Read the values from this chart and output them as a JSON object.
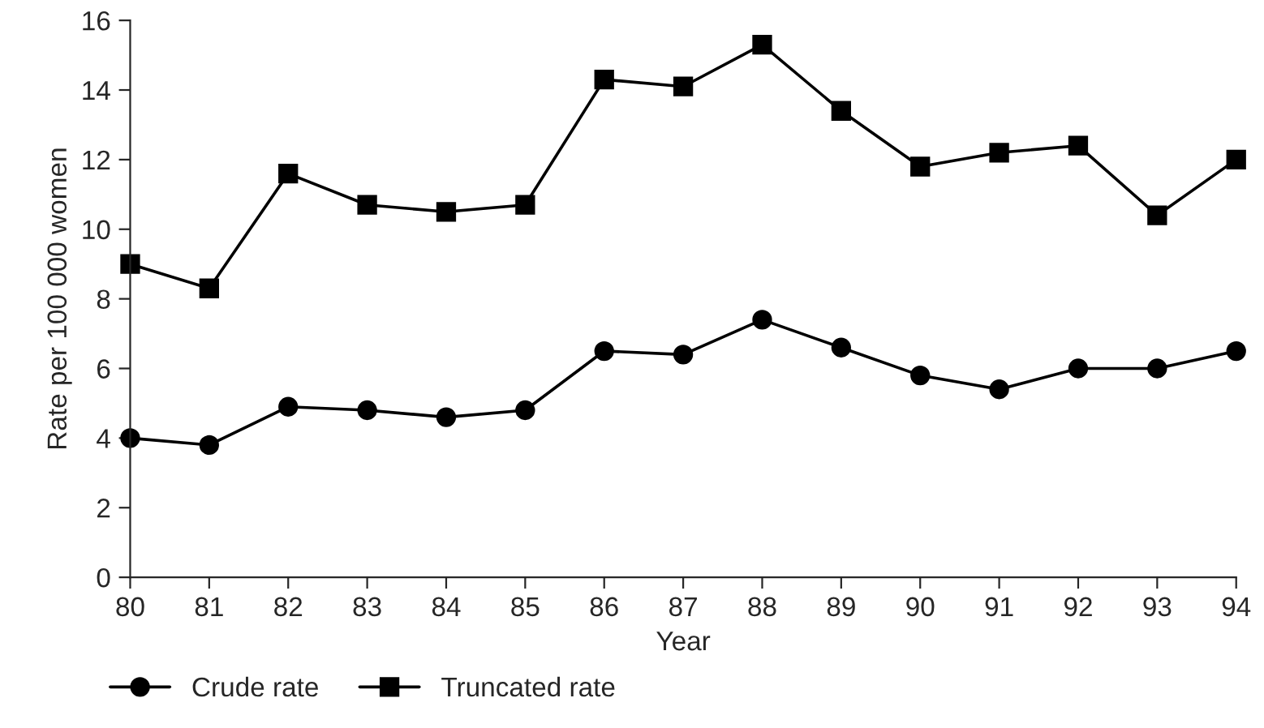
{
  "chart_data": {
    "type": "line",
    "xlabel": "Year",
    "ylabel": "Rate per 100 000 women",
    "x": [
      80,
      81,
      82,
      83,
      84,
      85,
      86,
      87,
      88,
      89,
      90,
      91,
      92,
      93,
      94
    ],
    "series": [
      {
        "name": "Crude rate",
        "color": "#000000",
        "marker": "circle",
        "values": [
          4.0,
          3.8,
          4.9,
          4.8,
          4.6,
          4.8,
          6.5,
          6.4,
          7.4,
          6.6,
          5.8,
          5.4,
          6.0,
          6.0,
          6.5
        ]
      },
      {
        "name": "Truncated rate",
        "color": "#000000",
        "marker": "square",
        "values": [
          9.0,
          8.3,
          11.6,
          10.7,
          10.5,
          10.7,
          14.3,
          14.1,
          15.3,
          13.4,
          11.8,
          12.2,
          12.4,
          10.4,
          12.0
        ]
      }
    ],
    "xlim": [
      80,
      94
    ],
    "xticks": [
      80,
      81,
      82,
      83,
      84,
      85,
      86,
      87,
      88,
      89,
      90,
      91,
      92,
      93,
      94
    ],
    "ylim": [
      0,
      16
    ],
    "yticks": [
      0,
      2,
      4,
      6,
      8,
      10,
      12,
      14,
      16
    ],
    "grid": false,
    "legend": "bottom left",
    "line_style": "solid"
  }
}
